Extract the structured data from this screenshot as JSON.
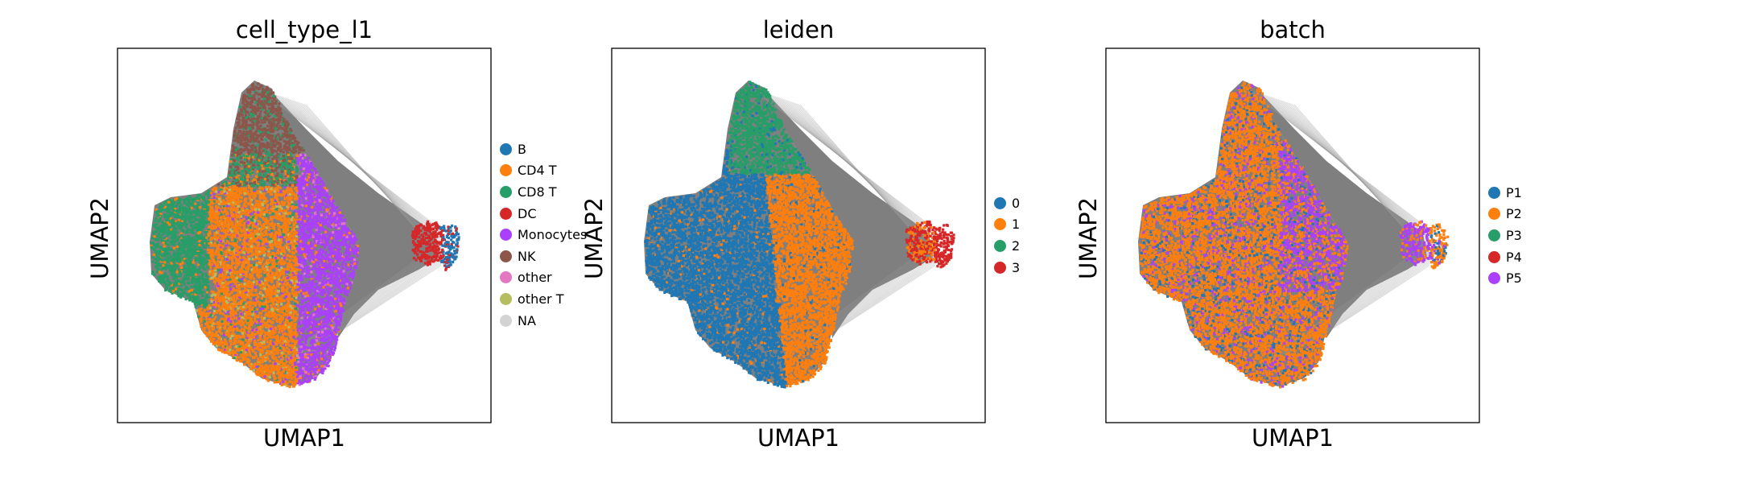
{
  "chart_data": [
    {
      "type": "scatter",
      "title": "cell_type_l1",
      "xlabel": "UMAP1",
      "ylabel": "UMAP2",
      "grid": false,
      "legend_position": "right",
      "series": [
        {
          "name": "B",
          "color": "#1f77b4"
        },
        {
          "name": "CD4 T",
          "color": "#ff7f0e"
        },
        {
          "name": "CD8 T",
          "color": "#279e68"
        },
        {
          "name": "DC",
          "color": "#d62728"
        },
        {
          "name": "Monocytes",
          "color": "#aa40fc"
        },
        {
          "name": "NK",
          "color": "#8c564b"
        },
        {
          "name": "other",
          "color": "#e377c2"
        },
        {
          "name": "other T",
          "color": "#b5bd61"
        },
        {
          "name": "NA",
          "color": "#d3d3d3"
        }
      ]
    },
    {
      "type": "scatter",
      "title": "leiden",
      "xlabel": "UMAP1",
      "ylabel": "UMAP2",
      "grid": false,
      "legend_position": "right",
      "series": [
        {
          "name": "0",
          "color": "#1f77b4"
        },
        {
          "name": "1",
          "color": "#ff7f0e"
        },
        {
          "name": "2",
          "color": "#279e68"
        },
        {
          "name": "3",
          "color": "#d62728"
        }
      ]
    },
    {
      "type": "scatter",
      "title": "batch",
      "xlabel": "UMAP1",
      "ylabel": "UMAP2",
      "grid": false,
      "legend_position": "right",
      "series": [
        {
          "name": "P1",
          "color": "#1f77b4"
        },
        {
          "name": "P2",
          "color": "#ff7f0e"
        },
        {
          "name": "P3",
          "color": "#279e68"
        },
        {
          "name": "P4",
          "color": "#d62728"
        },
        {
          "name": "P5",
          "color": "#aa40fc"
        }
      ]
    }
  ]
}
